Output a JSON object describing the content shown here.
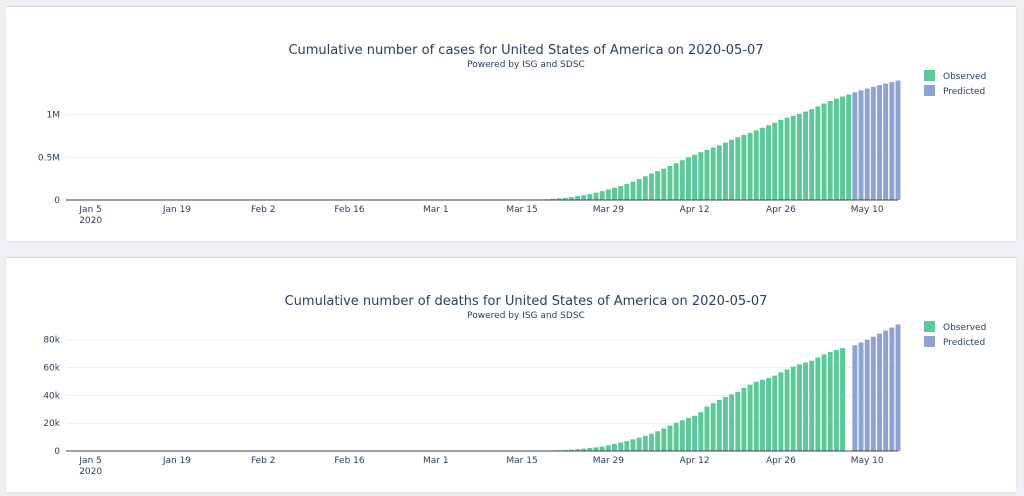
{
  "colors": {
    "observed": "#5cc99a",
    "predicted": "#8fa3d1"
  },
  "legend": {
    "observed": "Observed",
    "predicted": "Predicted"
  },
  "chart_data": [
    {
      "type": "bar",
      "title": "Cumulative number of cases for United States of America on 2020-05-07",
      "subtitle": "Powered by ISG and SDSC",
      "xlabel": "",
      "ylabel": "",
      "ylim": [
        0,
        1500000
      ],
      "y_ticks": [
        0,
        500000,
        1000000
      ],
      "y_tick_labels": [
        "0",
        "0.5M",
        "1M"
      ],
      "x_range": [
        "2020-01-01",
        "2020-05-15"
      ],
      "x_ticks": [
        "2020-01-05",
        "2020-01-19",
        "2020-02-02",
        "2020-02-16",
        "2020-03-01",
        "2020-03-15",
        "2020-03-29",
        "2020-04-12",
        "2020-04-26",
        "2020-05-10"
      ],
      "x_tick_labels": [
        "Jan 5",
        "Jan 19",
        "Feb 2",
        "Feb 16",
        "Mar 1",
        "Mar 15",
        "Mar 29",
        "Apr 12",
        "Apr 26",
        "May 10"
      ],
      "x_tick_year": "2020",
      "grid": true,
      "legend_position": "top-right",
      "series": [
        {
          "name": "Observed",
          "x_start": "2020-01-22",
          "values": [
            1,
            1,
            2,
            2,
            5,
            5,
            5,
            6,
            6,
            8,
            8,
            8,
            11,
            11,
            11,
            12,
            12,
            12,
            12,
            12,
            13,
            13,
            14,
            14,
            14,
            14,
            14,
            14,
            14,
            14,
            15,
            15,
            15,
            15,
            15,
            15,
            16,
            16,
            24,
            30,
            53,
            73,
            104,
            140,
            211,
            300,
            430,
            570,
            700,
            1000,
            1300,
            1700,
            2200,
            2900,
            3600,
            4600,
            6400,
            9000,
            13000,
            19000,
            26000,
            35000,
            46000,
            56000,
            69000,
            86000,
            104000,
            124000,
            143000,
            164000,
            189000,
            215000,
            245000,
            278000,
            311000,
            337000,
            367000,
            400000,
            432000,
            466000,
            501000,
            530000,
            560000,
            587000,
            614000,
            641000,
            672000,
            706000,
            736000,
            764000,
            788000,
            816000,
            846000,
            876000,
            905000,
            940000,
            965000,
            986000,
            1010000,
            1036000,
            1065000,
            1096000,
            1130000,
            1160000,
            1188000,
            1213000,
            1237000
          ]
        },
        {
          "name": "Predicted",
          "x_start": "2020-05-08",
          "values": [
            1262000,
            1285000,
            1306000,
            1326000,
            1346000,
            1364000,
            1382000,
            1400000
          ]
        }
      ]
    },
    {
      "type": "bar",
      "title": "Cumulative number of deaths for United States of America on 2020-05-07",
      "subtitle": "Powered by ISG and SDSC",
      "xlabel": "",
      "ylabel": "",
      "ylim": [
        0,
        92000
      ],
      "y_ticks": [
        0,
        20000,
        40000,
        60000,
        80000
      ],
      "y_tick_labels": [
        "0",
        "20k",
        "40k",
        "60k",
        "80k"
      ],
      "x_range": [
        "2020-01-01",
        "2020-05-15"
      ],
      "x_ticks": [
        "2020-01-05",
        "2020-01-19",
        "2020-02-02",
        "2020-02-16",
        "2020-03-01",
        "2020-03-15",
        "2020-03-29",
        "2020-04-12",
        "2020-04-26",
        "2020-05-10"
      ],
      "x_tick_labels": [
        "Jan 5",
        "Jan 19",
        "Feb 2",
        "Feb 16",
        "Mar 1",
        "Mar 15",
        "Mar 29",
        "Apr 12",
        "Apr 26",
        "May 10"
      ],
      "x_tick_year": "2020",
      "grid": true,
      "legend_position": "top-right",
      "series": [
        {
          "name": "Observed",
          "x_start": "2020-01-22",
          "values": [
            0,
            0,
            0,
            0,
            0,
            0,
            0,
            0,
            0,
            0,
            0,
            0,
            0,
            0,
            0,
            0,
            0,
            0,
            0,
            0,
            0,
            0,
            0,
            0,
            0,
            0,
            0,
            0,
            0,
            0,
            0,
            0,
            0,
            0,
            0,
            0,
            0,
            1,
            6,
            9,
            11,
            12,
            15,
            19,
            22,
            26,
            30,
            38,
            41,
            48,
            57,
            68,
            86,
            109,
            150,
            206,
            255,
            341,
            471,
            590,
            780,
            1000,
            1300,
            1700,
            2200,
            2600,
            3200,
            4100,
            5100,
            6100,
            7100,
            8400,
            9600,
            10900,
            12400,
            14200,
            16200,
            18300,
            20200,
            22100,
            23700,
            25300,
            27900,
            32000,
            34400,
            36700,
            38900,
            40700,
            42500,
            45300,
            47700,
            49800,
            51200,
            52400,
            54200,
            56600,
            58600,
            60600,
            62300,
            63600,
            64900,
            67200,
            69500,
            71100,
            72600,
            74000
          ]
        },
        {
          "name": "Predicted",
          "x_start": "2020-05-08",
          "values": [
            76000,
            78000,
            80000,
            82200,
            84400,
            86600,
            88800,
            91000
          ]
        }
      ]
    }
  ]
}
